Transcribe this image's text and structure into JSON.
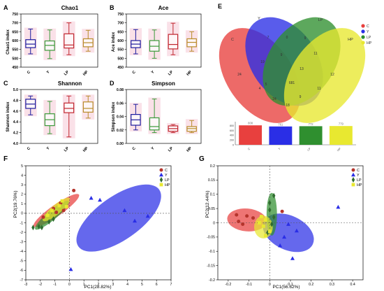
{
  "colors": {
    "C": "#e8403e",
    "Y": "#2a2ee6",
    "LP": "#2f8f2f",
    "HP": "#e8e830",
    "box_A": "#1b1b9e",
    "box_B": "#3a9a3a",
    "box_C": "#c0262e",
    "box_D": "#b88c2a",
    "box_shade": "#f6c8d6",
    "zero_line": "#555555"
  },
  "legend_groups": [
    "C",
    "Y",
    "LP",
    "HP"
  ],
  "chart_data": [
    {
      "panel": "A",
      "type": "box",
      "title": "Chao1",
      "ylabel": "Chao1 index",
      "categories": [
        "C",
        "Y",
        "LP",
        "HP"
      ],
      "ylim": [
        450,
        750
      ],
      "yticks": [
        450,
        500,
        550,
        600,
        650,
        700,
        750
      ],
      "boxes": [
        {
          "min": 525,
          "q1": 560,
          "median": 580,
          "q3": 605,
          "max": 665
        },
        {
          "min": 498,
          "q1": 545,
          "median": 573,
          "q3": 598,
          "max": 660
        },
        {
          "min": 520,
          "q1": 558,
          "median": 575,
          "q3": 638,
          "max": 700
        },
        {
          "min": 540,
          "q1": 565,
          "median": 588,
          "q3": 610,
          "max": 658
        }
      ]
    },
    {
      "panel": "B",
      "type": "box",
      "title": "Ace",
      "ylabel": "Ace index",
      "categories": [
        "C",
        "Y",
        "LP",
        "HP"
      ],
      "ylim": [
        450,
        750
      ],
      "yticks": [
        450,
        500,
        550,
        600,
        650,
        700,
        750
      ],
      "boxes": [
        {
          "min": 525,
          "q1": 560,
          "median": 580,
          "q3": 600,
          "max": 662
        },
        {
          "min": 500,
          "q1": 540,
          "median": 568,
          "q3": 600,
          "max": 660
        },
        {
          "min": 520,
          "q1": 553,
          "median": 578,
          "q3": 635,
          "max": 698
        },
        {
          "min": 540,
          "q1": 565,
          "median": 590,
          "q3": 610,
          "max": 650
        }
      ]
    },
    {
      "panel": "C",
      "type": "box",
      "title": "Shannon",
      "ylabel": "Shannon index",
      "categories": [
        "C",
        "Y",
        "LP",
        "HP"
      ],
      "ylim": [
        4.0,
        5.0
      ],
      "yticks": [
        4.0,
        4.2,
        4.4,
        4.6,
        4.8,
        5.0
      ],
      "boxes": [
        {
          "min": 4.53,
          "q1": 4.65,
          "median": 4.73,
          "q3": 4.82,
          "max": 4.88
        },
        {
          "min": 4.18,
          "q1": 4.33,
          "median": 4.44,
          "q3": 4.55,
          "max": 4.78
        },
        {
          "min": 4.12,
          "q1": 4.57,
          "median": 4.65,
          "q3": 4.75,
          "max": 4.88
        },
        {
          "min": 4.47,
          "q1": 4.58,
          "median": 4.65,
          "q3": 4.77,
          "max": 4.88
        }
      ]
    },
    {
      "panel": "D",
      "type": "box",
      "title": "Simpson",
      "ylabel": "Simpson index",
      "categories": [
        "C",
        "Y",
        "LP",
        "HP"
      ],
      "ylim": [
        0.0,
        0.08
      ],
      "yticks": [
        0.0,
        0.02,
        0.04,
        0.06,
        0.08
      ],
      "boxes": [
        {
          "min": 0.02,
          "q1": 0.027,
          "median": 0.035,
          "q3": 0.043,
          "max": 0.058
        },
        {
          "min": 0.016,
          "q1": 0.02,
          "median": 0.025,
          "q3": 0.038,
          "max": 0.066
        },
        {
          "min": 0.016,
          "q1": 0.018,
          "median": 0.022,
          "q3": 0.026,
          "max": 0.028
        },
        {
          "min": 0.016,
          "q1": 0.018,
          "median": 0.022,
          "q3": 0.025,
          "max": 0.034
        }
      ]
    },
    {
      "panel": "E",
      "type": "venn",
      "sets": [
        "C",
        "Y",
        "LP",
        "HP"
      ],
      "region_counts": [
        "24",
        "7",
        "0",
        "9",
        "19",
        "681",
        "13",
        "12",
        "11",
        "24",
        "18",
        "9",
        "4",
        "11",
        "9",
        "5"
      ],
      "bar_values": [
        808,
        761,
        772,
        779
      ],
      "bar_labels": [
        "808",
        "761",
        "772",
        "779"
      ],
      "bar_categories": [
        "C",
        "Y",
        "LP",
        "HP"
      ]
    },
    {
      "panel": "F",
      "type": "scatter",
      "xlabel": "PC1(28.82%)",
      "ylabel": "PC2(19.76%)",
      "xlim": [
        -3,
        7
      ],
      "ylim": [
        -7,
        5
      ],
      "xticks": [
        -3,
        -2,
        -1,
        0,
        1,
        2,
        3,
        4,
        5,
        6,
        7
      ],
      "yticks": [
        -7,
        -6,
        -5,
        -4,
        -3,
        -2,
        -1,
        0,
        1,
        2,
        3,
        4,
        5
      ],
      "series": [
        {
          "name": "C",
          "points": [
            [
              0.3,
              2.4
            ],
            [
              -1.1,
              0.5
            ],
            [
              -0.6,
              1.1
            ],
            [
              -0.9,
              0.1
            ],
            [
              -0.4,
              0.3
            ],
            [
              -1.8,
              -0.4
            ]
          ]
        },
        {
          "name": "Y",
          "points": [
            [
              1.5,
              1.6
            ],
            [
              2.1,
              1.4
            ],
            [
              3.8,
              0.3
            ],
            [
              4.5,
              -0.8
            ],
            [
              5.4,
              -0.3
            ],
            [
              0.1,
              -5.9
            ]
          ]
        },
        {
          "name": "LP",
          "points": [
            [
              -2.5,
              -1.5
            ],
            [
              -2.1,
              -1.4
            ],
            [
              -1.4,
              -0.9
            ],
            [
              -1.1,
              -0.6
            ],
            [
              -1.9,
              -1.5
            ]
          ]
        },
        {
          "name": "HP",
          "points": [
            [
              -0.5,
              1.3
            ],
            [
              -1.2,
              0.3
            ],
            [
              -0.2,
              0.7
            ],
            [
              -1.5,
              -0.2
            ],
            [
              -0.7,
              0.8
            ]
          ]
        }
      ],
      "ellipses": [
        {
          "group": "C",
          "cx": -0.9,
          "cy": 0.3,
          "rx": 1.9,
          "ry": 0.6,
          "angle": 35
        },
        {
          "group": "Y",
          "cx": 3.4,
          "cy": -0.5,
          "rx": 3.4,
          "ry": 2.3,
          "angle": 35
        },
        {
          "group": "LP",
          "cx": -1.2,
          "cy": -0.2,
          "rx": 1.5,
          "ry": 0.5,
          "angle": 40
        },
        {
          "group": "HP",
          "cx": -0.9,
          "cy": 0.4,
          "rx": 1.2,
          "ry": 0.5,
          "angle": 40
        }
      ]
    },
    {
      "panel": "G",
      "type": "scatter",
      "xlabel": "PC1(56.62%)",
      "ylabel": "PC2(12.44%)",
      "xlim": [
        -0.25,
        0.45
      ],
      "ylim": [
        -0.2,
        0.2
      ],
      "xticks": [
        -0.2,
        -0.1,
        0,
        0.1,
        0.2,
        0.3,
        0.4
      ],
      "xtick_labels": [
        "-0.2",
        "-0.1",
        "0",
        "0.1",
        "0.2",
        "0.3",
        "0.4"
      ],
      "yticks": [
        -0.2,
        -0.15,
        -0.1,
        -0.05,
        0,
        0.05,
        0.1,
        0.15,
        0.2
      ],
      "ytick_labels": [
        "-0.2",
        "-0.15",
        "-0.1",
        "-0.05",
        "0",
        "0.05",
        "0.1",
        "0.15",
        "0.2"
      ],
      "series": [
        {
          "name": "C",
          "points": [
            [
              -0.16,
              0.028
            ],
            [
              -0.11,
              0.024
            ],
            [
              -0.08,
              0.017
            ],
            [
              -0.15,
              0.005
            ],
            [
              -0.13,
              -0.005
            ],
            [
              0.06,
              0.04
            ]
          ]
        },
        {
          "name": "Y",
          "points": [
            [
              0.33,
              0.055
            ],
            [
              0.09,
              -0.005
            ],
            [
              0.13,
              -0.028
            ],
            [
              0.07,
              -0.05
            ],
            [
              0.05,
              -0.08
            ],
            [
              0.11,
              -0.125
            ]
          ]
        },
        {
          "name": "LP",
          "points": [
            [
              0.02,
              0.095
            ],
            [
              0.0,
              0.07
            ],
            [
              0.0,
              0.045
            ],
            [
              0.02,
              0.02
            ],
            [
              0.01,
              -0.005
            ],
            [
              -0.01,
              -0.035
            ]
          ]
        },
        {
          "name": "HP",
          "points": [
            [
              -0.04,
              0.022
            ],
            [
              -0.02,
              0.01
            ],
            [
              -0.03,
              -0.012
            ],
            [
              -0.05,
              0.0
            ],
            [
              0.0,
              -0.03
            ],
            [
              -0.02,
              -0.045
            ]
          ]
        }
      ],
      "ellipses": [
        {
          "group": "C",
          "cx": -0.11,
          "cy": 0.01,
          "rx": 0.095,
          "ry": 0.04,
          "angle": -5
        },
        {
          "group": "Y",
          "cx": 0.09,
          "cy": -0.035,
          "rx": 0.13,
          "ry": 0.06,
          "angle": -25
        },
        {
          "group": "LP",
          "cx": 0.01,
          "cy": 0.03,
          "rx": 0.025,
          "ry": 0.075,
          "angle": 0
        },
        {
          "group": "HP",
          "cx": -0.03,
          "cy": -0.015,
          "rx": 0.045,
          "ry": 0.04,
          "angle": 0
        }
      ]
    }
  ]
}
